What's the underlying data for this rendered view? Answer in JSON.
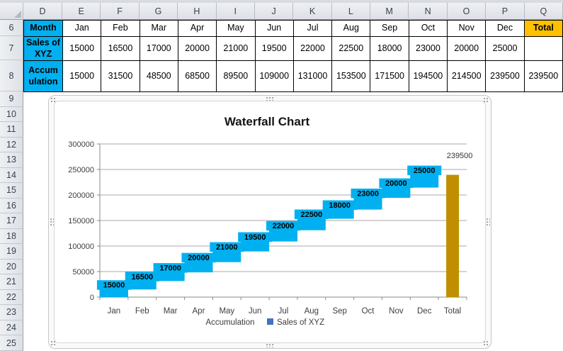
{
  "app": {
    "name": "Excel worksheet with waterfall chart"
  },
  "spreadsheet": {
    "column_letters": [
      "D",
      "E",
      "F",
      "G",
      "H",
      "I",
      "J",
      "K",
      "L",
      "M",
      "N",
      "O",
      "P",
      "Q"
    ],
    "row_numbers": [
      "6",
      "7",
      "8",
      "9",
      "10",
      "11",
      "12",
      "13",
      "14",
      "15",
      "16",
      "17",
      "18",
      "19",
      "20",
      "21",
      "22",
      "23",
      "24",
      "25"
    ],
    "colors": {
      "header_fill": "#00B0F0",
      "total_fill": "#FFC000"
    },
    "table": {
      "header_row": {
        "label": "Month",
        "cells": [
          "Jan",
          "Feb",
          "Mar",
          "Apr",
          "May",
          "Jun",
          "Jul",
          "Aug",
          "Sep",
          "Oct",
          "Nov",
          "Dec"
        ],
        "total_label": "Total"
      },
      "sales_row": {
        "label": "Sales of XYZ",
        "cells": [
          "15000",
          "16500",
          "17000",
          "20000",
          "21000",
          "19500",
          "22000",
          "22500",
          "18000",
          "23000",
          "20000",
          "25000"
        ],
        "total_cell": ""
      },
      "accum_row": {
        "label": "Accumulation",
        "cells": [
          "15000",
          "31500",
          "48500",
          "68500",
          "89500",
          "109000",
          "131000",
          "153500",
          "171500",
          "194500",
          "214500",
          "239500"
        ],
        "total_cell": "239500"
      }
    }
  },
  "chart_data": {
    "type": "bar",
    "subtype": "waterfall-stacked",
    "title": "Waterfall Chart",
    "categories": [
      "Jan",
      "Feb",
      "Mar",
      "Apr",
      "May",
      "Jun",
      "Jul",
      "Aug",
      "Sep",
      "Oct",
      "Nov",
      "Dec",
      "Total"
    ],
    "series": [
      {
        "name": "Accumulation",
        "role": "hidden-base",
        "values": [
          0,
          15000,
          31500,
          48500,
          68500,
          89500,
          109000,
          131000,
          153500,
          171500,
          194500,
          214500,
          0
        ]
      },
      {
        "name": "Sales of XYZ",
        "role": "visible-float",
        "color": "#00B0F0",
        "values": [
          15000,
          16500,
          17000,
          20000,
          21000,
          19500,
          22000,
          22500,
          18000,
          23000,
          20000,
          25000,
          0
        ]
      }
    ],
    "data_labels": [
      "15000",
      "16500",
      "17000",
      "20000",
      "21000",
      "19500",
      "22000",
      "22500",
      "18000",
      "23000",
      "20000",
      "25000"
    ],
    "total_bar": {
      "category": "Total",
      "value": 239500,
      "label": "239500",
      "color": "#BF8F00"
    },
    "ylim": [
      0,
      300000
    ],
    "ytick_step": 50000,
    "yticks": [
      "0",
      "50000",
      "100000",
      "150000",
      "200000",
      "250000",
      "300000"
    ],
    "grid": "horizontal",
    "gridline_color": "#a9a9a9",
    "axis_color": "#898989",
    "legend": {
      "position": "bottom",
      "items": [
        {
          "label": "Accumulation",
          "swatch": "none"
        },
        {
          "label": "Sales of XYZ",
          "swatch": "#4472C4"
        }
      ]
    }
  }
}
